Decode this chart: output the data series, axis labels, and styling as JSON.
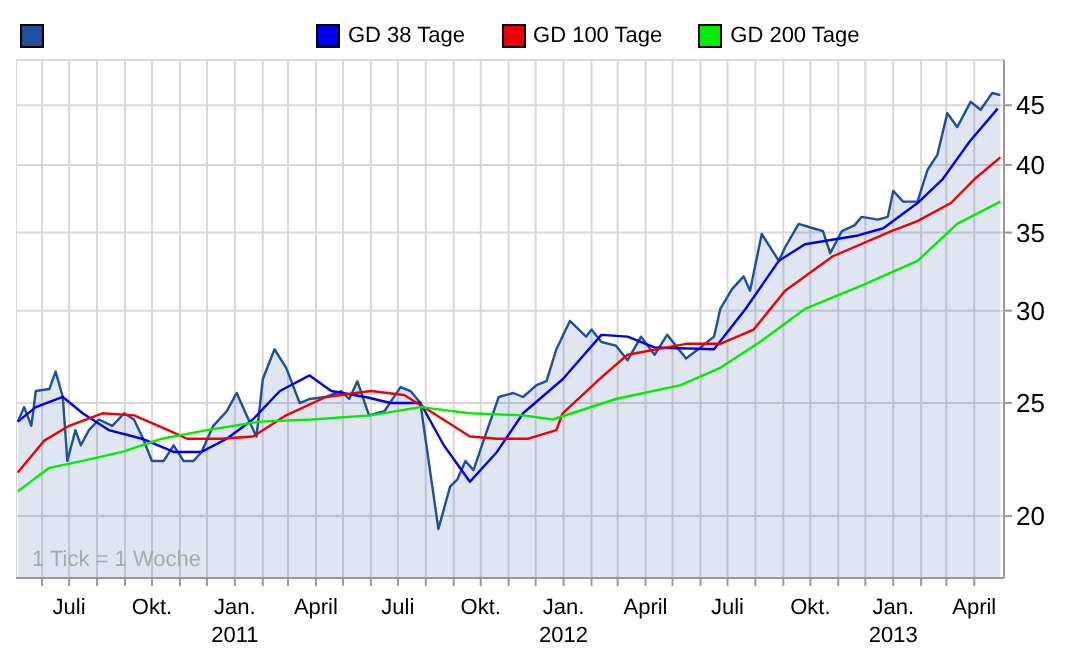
{
  "chart_data": {
    "type": "line",
    "annotations": [
      "1 Tick = 1 Woche"
    ],
    "log": "y",
    "grid": true,
    "legend": "top left",
    "xlim": [
      "2010-05-03",
      "2013-05-04"
    ],
    "ylim": [
      17.7,
      49.2
    ],
    "yticks": [
      20,
      25,
      30,
      35,
      40,
      45
    ],
    "xticks": [
      {
        "value": "2010-06",
        "label": null
      },
      {
        "value": "2010-07",
        "label": "Juli"
      },
      {
        "value": "2010-08",
        "label": null
      },
      {
        "value": "2010-09",
        "label": null
      },
      {
        "value": "2010-10",
        "label": "Okt."
      },
      {
        "value": "2010-11",
        "label": null
      },
      {
        "value": "2010-12",
        "label": null
      },
      {
        "value": "2011-01",
        "label": "Jan.\n2011"
      },
      {
        "value": "2011-02",
        "label": null
      },
      {
        "value": "2011-03",
        "label": null
      },
      {
        "value": "2011-04",
        "label": "April"
      },
      {
        "value": "2011-05",
        "label": null
      },
      {
        "value": "2011-06",
        "label": null
      },
      {
        "value": "2011-07",
        "label": "Juli"
      },
      {
        "value": "2011-08",
        "label": null
      },
      {
        "value": "2011-09",
        "label": null
      },
      {
        "value": "2011-10",
        "label": "Okt."
      },
      {
        "value": "2011-11",
        "label": null
      },
      {
        "value": "2011-12",
        "label": null
      },
      {
        "value": "2012-01",
        "label": "Jan.\n2012"
      },
      {
        "value": "2012-02",
        "label": null
      },
      {
        "value": "2012-03",
        "label": null
      },
      {
        "value": "2012-04",
        "label": "April"
      },
      {
        "value": "2012-05",
        "label": null
      },
      {
        "value": "2012-06",
        "label": null
      },
      {
        "value": "2012-07",
        "label": "Juli"
      },
      {
        "value": "2012-08",
        "label": null
      },
      {
        "value": "2012-09",
        "label": null
      },
      {
        "value": "2012-10",
        "label": "Okt."
      },
      {
        "value": "2012-11",
        "label": null
      },
      {
        "value": "2012-12",
        "label": null
      },
      {
        "value": "2013-01",
        "label": "Jan.\n2013"
      },
      {
        "value": "2013-02",
        "label": null
      },
      {
        "value": "2013-03",
        "label": null
      },
      {
        "value": "2013-04",
        "label": "April"
      }
    ],
    "series": [
      {
        "type": "area",
        "color": "#1c4f9c",
        "x": [
          "2010-05-05",
          "2010-05-12",
          "2010-05-20",
          "2010-05-25",
          "2010-06-09",
          "2010-06-16",
          "2010-06-24",
          "2010-06-29",
          "2010-07-08",
          "2010-07-14",
          "2010-07-23",
          "2010-08-03",
          "2010-08-18",
          "2010-08-31",
          "2010-09-11",
          "2010-09-20",
          "2010-10-01",
          "2010-10-14",
          "2010-10-25",
          "2010-11-05",
          "2010-11-16",
          "2010-11-25",
          "2010-12-08",
          "2010-12-23",
          "2011-01-03",
          "2011-01-14",
          "2011-01-25",
          "2011-02-01",
          "2011-02-14",
          "2011-02-27",
          "2011-03-14",
          "2011-03-25",
          "2011-04-12",
          "2011-04-29",
          "2011-05-08",
          "2011-05-17",
          "2011-05-30",
          "2011-06-16",
          "2011-07-04",
          "2011-07-15",
          "2011-07-26",
          "2011-08-06",
          "2011-08-15",
          "2011-08-28",
          "2011-09-05",
          "2011-09-14",
          "2011-09-23",
          "2011-10-04",
          "2011-10-21",
          "2011-11-06",
          "2011-11-17",
          "2011-12-02",
          "2011-12-13",
          "2011-12-24",
          "2012-01-08",
          "2012-01-26",
          "2012-02-01",
          "2012-02-12",
          "2012-02-28",
          "2012-03-12",
          "2012-03-27",
          "2012-04-11",
          "2012-04-25",
          "2012-05-16",
          "2012-06-01",
          "2012-06-16",
          "2012-06-23",
          "2012-07-06",
          "2012-07-19",
          "2012-07-26",
          "2012-08-08",
          "2012-08-27",
          "2012-09-03",
          "2012-09-18",
          "2012-10-04",
          "2012-10-15",
          "2012-10-23",
          "2012-11-05",
          "2012-11-19",
          "2012-11-27",
          "2012-12-15",
          "2012-12-26",
          "2013-01-01",
          "2013-01-12",
          "2013-01-28",
          "2013-02-08",
          "2013-02-19",
          "2013-03-02",
          "2013-03-13",
          "2013-03-28",
          "2013-04-08",
          "2013-04-14",
          "2013-04-21",
          "2013-04-30"
        ],
        "values": [
          24.1,
          24.8,
          23.9,
          25.6,
          25.7,
          26.6,
          25.3,
          22.3,
          23.7,
          23.0,
          23.7,
          24.2,
          23.9,
          24.5,
          24.2,
          23.4,
          22.3,
          22.3,
          23.0,
          22.3,
          22.3,
          22.7,
          23.9,
          24.6,
          25.5,
          24.4,
          23.4,
          26.2,
          27.8,
          26.8,
          25.0,
          25.2,
          25.3,
          25.6,
          25.2,
          26.1,
          24.4,
          24.6,
          25.8,
          25.6,
          25.0,
          21.8,
          19.5,
          21.2,
          21.5,
          22.3,
          21.9,
          23.2,
          25.3,
          25.5,
          25.3,
          25.9,
          26.1,
          27.8,
          29.4,
          28.5,
          28.9,
          28.2,
          28.0,
          27.2,
          28.5,
          27.5,
          28.6,
          27.3,
          27.9,
          28.5,
          30.1,
          31.3,
          32.1,
          31.2,
          34.9,
          33.1,
          34.0,
          35.6,
          35.3,
          35.1,
          33.6,
          35.1,
          35.5,
          36.1,
          35.9,
          36.1,
          38.0,
          37.2,
          37.2,
          39.6,
          40.8,
          44.3,
          43.1,
          45.3,
          44.6,
          45.3,
          46.1,
          45.9
        ]
      },
      {
        "name": "GD 38 Tage",
        "color": "#0000ee",
        "x": [
          "2010-05-05",
          "2010-05-25",
          "2010-06-24",
          "2010-07-16",
          "2010-08-14",
          "2010-09-20",
          "2010-10-25",
          "2010-11-25",
          "2010-12-23",
          "2011-01-21",
          "2011-02-20",
          "2011-03-25",
          "2011-04-18",
          "2011-05-26",
          "2011-06-23",
          "2011-07-26",
          "2011-08-21",
          "2011-09-19",
          "2011-10-19",
          "2011-11-17",
          "2011-12-31",
          "2012-02-12",
          "2012-03-12",
          "2012-04-11",
          "2012-06-16",
          "2012-07-21",
          "2012-08-27",
          "2012-09-25",
          "2012-11-23",
          "2012-12-21",
          "2013-01-28",
          "2013-02-25",
          "2013-03-28",
          "2013-04-27"
        ],
        "values": [
          24.1,
          24.8,
          25.3,
          24.5,
          23.7,
          23.3,
          22.7,
          22.7,
          23.3,
          24.2,
          25.6,
          26.4,
          25.6,
          25.3,
          25.0,
          25.0,
          23.0,
          21.4,
          22.7,
          24.5,
          26.2,
          28.6,
          28.5,
          27.9,
          27.8,
          30.1,
          33.1,
          34.2,
          34.8,
          35.3,
          37.1,
          38.9,
          42.0,
          44.7
        ]
      },
      {
        "name": "GD 100 Tage",
        "color": "#ee0000",
        "x": [
          "2010-05-05",
          "2010-06-03",
          "2010-07-01",
          "2010-08-07",
          "2010-09-11",
          "2010-10-19",
          "2010-11-09",
          "2010-12-17",
          "2011-01-21",
          "2011-02-27",
          "2011-04-12",
          "2011-06-01",
          "2011-07-08",
          "2011-08-06",
          "2011-09-19",
          "2011-10-19",
          "2011-11-23",
          "2011-12-24",
          "2011-12-31",
          "2012-02-12",
          "2012-03-12",
          "2012-05-16",
          "2012-06-23",
          "2012-07-30",
          "2012-09-03",
          "2012-10-26",
          "2012-12-30",
          "2013-01-28",
          "2013-03-06",
          "2013-04-03",
          "2013-04-30"
        ],
        "values": [
          21.8,
          23.2,
          23.9,
          24.5,
          24.4,
          23.7,
          23.3,
          23.3,
          23.4,
          24.4,
          25.3,
          25.6,
          25.4,
          24.6,
          23.4,
          23.3,
          23.3,
          23.7,
          24.5,
          26.3,
          27.5,
          28.1,
          28.1,
          28.9,
          31.2,
          33.4,
          35.1,
          35.8,
          37.1,
          39.0,
          40.6
        ]
      },
      {
        "name": "GD 200 Tage",
        "color": "#00ee00",
        "x": [
          "2010-05-05",
          "2010-06-09",
          "2010-07-16",
          "2010-08-29",
          "2010-10-12",
          "2010-12-01",
          "2011-01-29",
          "2011-03-27",
          "2011-06-01",
          "2011-07-26",
          "2011-09-19",
          "2011-11-17",
          "2011-12-20",
          "2012-02-28",
          "2012-05-10",
          "2012-06-23",
          "2012-08-06",
          "2012-09-25",
          "2012-11-30",
          "2013-01-28",
          "2013-03-13",
          "2013-04-30"
        ],
        "values": [
          21.0,
          22.0,
          22.3,
          22.7,
          23.3,
          23.7,
          24.1,
          24.2,
          24.4,
          24.8,
          24.5,
          24.4,
          24.2,
          25.2,
          25.9,
          26.8,
          28.2,
          30.1,
          31.6,
          33.1,
          35.6,
          37.2
        ]
      }
    ]
  }
}
